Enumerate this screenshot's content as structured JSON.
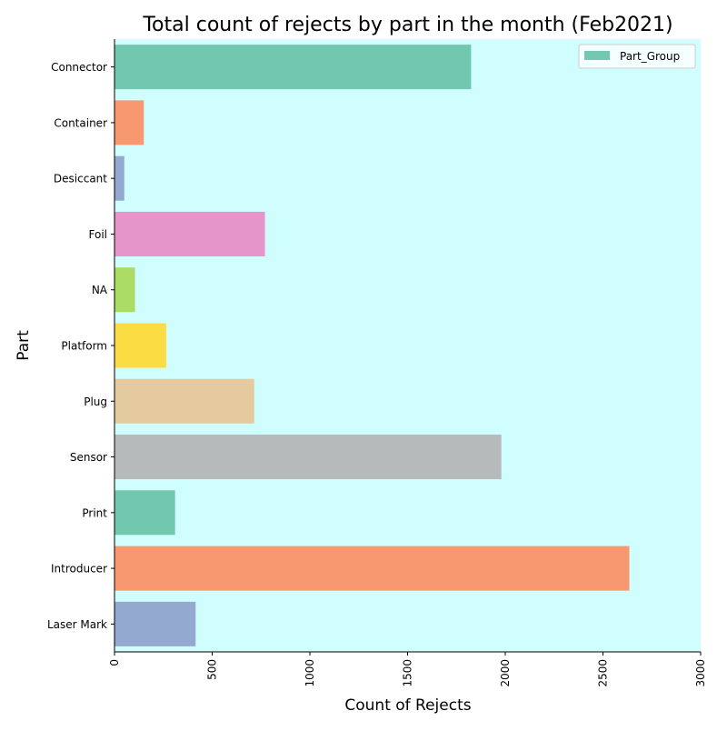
{
  "chart_data": {
    "type": "bar",
    "orientation": "horizontal",
    "title": "Total count of rejects by part in the month (Feb2021)",
    "xlabel": "Count of Rejects",
    "ylabel": "Part",
    "xlim": [
      0,
      3000
    ],
    "xticks": [
      0,
      500,
      1000,
      1500,
      2000,
      2500,
      3000
    ],
    "tick_rotation": "vertical",
    "categories": [
      "Connector",
      "Container",
      "Desiccant",
      "Foil",
      "NA",
      "Platform",
      "Plug",
      "Sensor",
      "Print",
      "Introducer",
      "Laser Mark"
    ],
    "values": [
      1825,
      150,
      50,
      770,
      105,
      265,
      715,
      1980,
      310,
      2635,
      415
    ],
    "bar_colors": [
      "#66c2a5",
      "#fc8d62",
      "#8da0cb",
      "#e78ac3",
      "#a6d854",
      "#ffd92f",
      "#e5c494",
      "#b3b3b3",
      "#66c2a5",
      "#fc8d62",
      "#8da0cb"
    ],
    "bar_opacity": 0.9,
    "plot_background": "#d0fefe",
    "grid": false,
    "legend": {
      "placement": "top-right",
      "entries": [
        {
          "label": "Part_Group",
          "color": "#66c2a5"
        }
      ]
    }
  }
}
